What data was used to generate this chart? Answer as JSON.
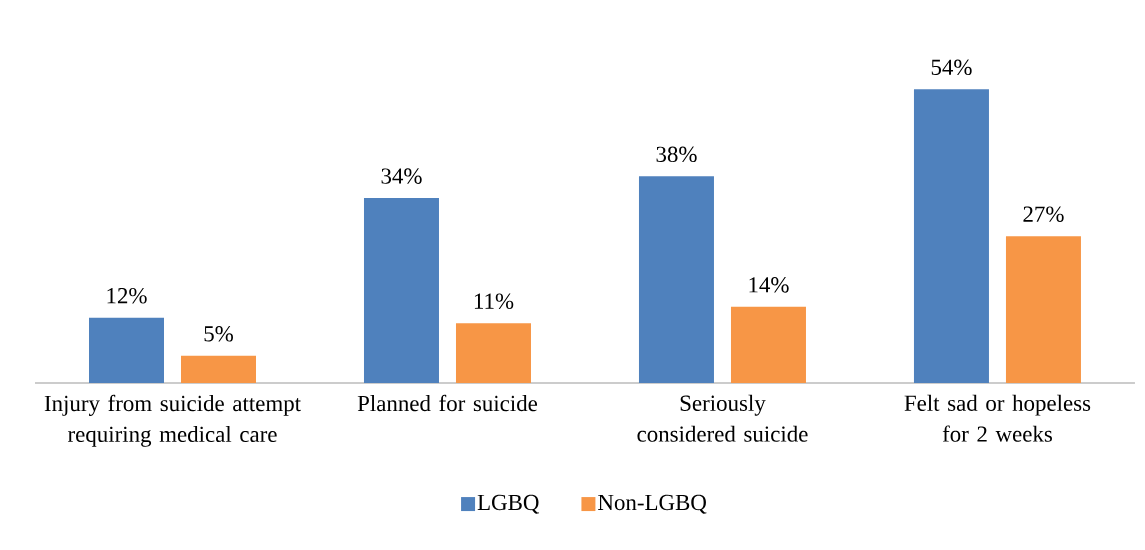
{
  "chart_data": {
    "type": "bar",
    "categories": [
      "Injury from suicide attempt requiring medical care",
      "Planned for suicide",
      "Seriously considered suicide",
      "Felt sad or hopeless for 2 weeks"
    ],
    "series": [
      {
        "name": "LGBQ",
        "color": "#4f81bd",
        "values": [
          12,
          34,
          38,
          54
        ],
        "value_labels": [
          "12%",
          "34%",
          "38%",
          "54%"
        ]
      },
      {
        "name": "Non-LGBQ",
        "color": "#f79646",
        "values": [
          5,
          11,
          14,
          27
        ],
        "value_labels": [
          "5%",
          "11%",
          "14%",
          "27%"
        ]
      }
    ],
    "legend": "bottom"
  }
}
